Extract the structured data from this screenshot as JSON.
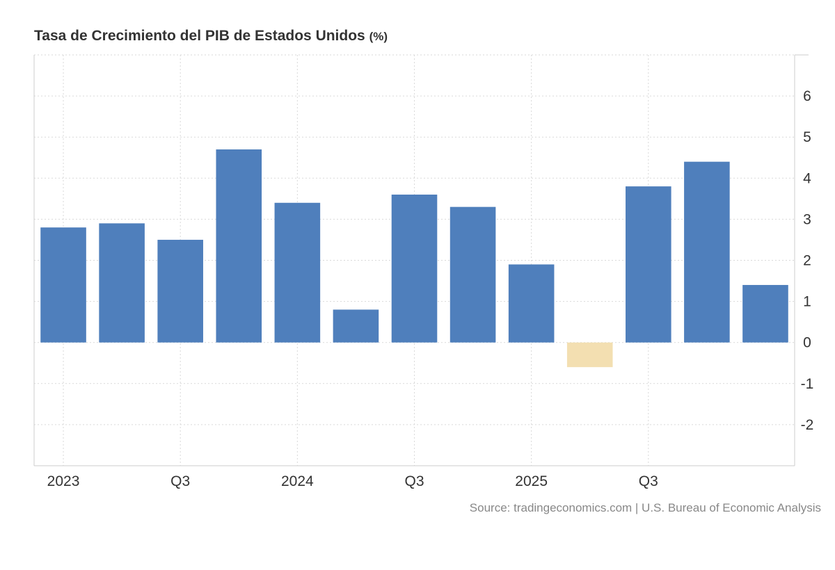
{
  "chart_data": {
    "type": "bar",
    "title": "Tasa de Crecimiento del PIB de Estados Unidos",
    "unit": "(%)",
    "categories": [
      "2023 Q1",
      "2023 Q2",
      "2023 Q3",
      "2023 Q4",
      "2024 Q1",
      "2024 Q2",
      "2024 Q3",
      "2024 Q4",
      "2025 Q1",
      "2025 Q2",
      "2025 Q3",
      "2025 Q4",
      "2026 Q1"
    ],
    "values": [
      2.8,
      2.9,
      2.5,
      4.7,
      3.4,
      0.8,
      3.6,
      3.3,
      1.9,
      -0.6,
      3.8,
      4.4,
      1.4
    ],
    "x_tick_labels": [
      {
        "label": "2023",
        "at": "2023 Q1"
      },
      {
        "label": "Q3",
        "at": "2023 Q3"
      },
      {
        "label": "2024",
        "at": "2024 Q1"
      },
      {
        "label": "Q3",
        "at": "2024 Q3"
      },
      {
        "label": "2025",
        "at": "2025 Q1"
      },
      {
        "label": "Q3",
        "at": "2025 Q3"
      }
    ],
    "y_ticks": [
      -2,
      -1,
      0,
      1,
      2,
      3,
      4,
      5,
      6
    ],
    "ylim": [
      -3,
      7
    ],
    "grid": true,
    "y_axis_side": "right",
    "source": "Source: tradingeconomics.com | U.S. Bureau of Economic Analysis",
    "colors": {
      "positive": "#4f7fbc",
      "negative": "#f3dfb1",
      "grid": "#d9d9d9",
      "axis": "#cccccc",
      "text": "#333333",
      "source_text": "#888888"
    }
  }
}
